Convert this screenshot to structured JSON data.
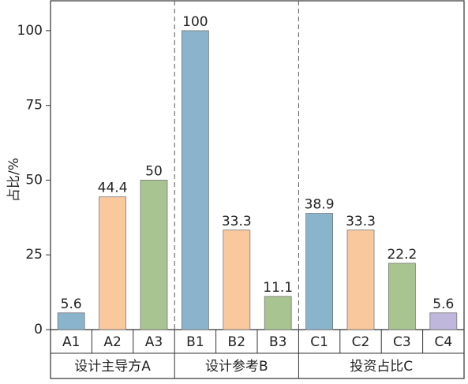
{
  "chart_data": {
    "type": "bar",
    "ylabel": "占比/%",
    "ylim": [
      0,
      110
    ],
    "yticks": [
      0,
      25,
      50,
      75,
      100
    ],
    "groups": [
      {
        "name": "设计主导方A",
        "categories": [
          "A1",
          "A2",
          "A3"
        ],
        "values": [
          5.6,
          44.4,
          50
        ],
        "colors": [
          "#8ab4cc",
          "#f9c89d",
          "#a8c490"
        ]
      },
      {
        "name": "设计参考B",
        "categories": [
          "B1",
          "B2",
          "B3"
        ],
        "values": [
          100,
          33.3,
          11.1
        ],
        "colors": [
          "#8ab4cc",
          "#f9c89d",
          "#a8c490"
        ]
      },
      {
        "name": "投资占比C",
        "categories": [
          "C1",
          "C2",
          "C3",
          "C4"
        ],
        "values": [
          38.9,
          33.3,
          22.2,
          5.6
        ],
        "colors": [
          "#8ab4cc",
          "#f9c89d",
          "#a8c490",
          "#c0b8dc"
        ]
      }
    ]
  }
}
